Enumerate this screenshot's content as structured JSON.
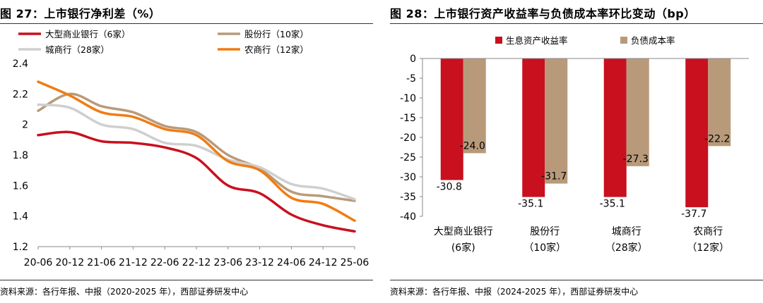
{
  "left": {
    "title": "图 27：上市银行净利差（%）",
    "source": "资料来源：各行年报、中报（2020-2025 年），西部证券研发中心",
    "chart_data": {
      "type": "line",
      "title": "上市银行净利差（%）",
      "x": [
        "20-06",
        "20-12",
        "21-06",
        "21-12",
        "22-06",
        "22-12",
        "23-06",
        "23-12",
        "24-06",
        "24-12",
        "25-06"
      ],
      "ylim": [
        1.2,
        2.4
      ],
      "yticks": [
        1.2,
        1.4,
        1.6,
        1.8,
        2,
        2.2,
        2.4
      ],
      "series": [
        {
          "name": "大型商业银行（6家）",
          "color": "#c8101e",
          "values": [
            1.93,
            1.95,
            1.89,
            1.88,
            1.85,
            1.78,
            1.6,
            1.55,
            1.41,
            1.34,
            1.3
          ]
        },
        {
          "name": "股份行（10家）",
          "color": "#b89a7a",
          "values": [
            2.09,
            2.2,
            2.12,
            2.08,
            1.99,
            1.95,
            1.8,
            1.71,
            1.56,
            1.53,
            1.5
          ]
        },
        {
          "name": "城商行（28家）",
          "color": "#cfcfcf",
          "values": [
            2.13,
            2.11,
            2.0,
            1.97,
            1.88,
            1.86,
            1.77,
            1.72,
            1.61,
            1.58,
            1.51
          ]
        },
        {
          "name": "农商行（12家）",
          "color": "#f07c13",
          "values": [
            2.28,
            2.19,
            2.08,
            2.05,
            1.97,
            1.93,
            1.76,
            1.7,
            1.52,
            1.48,
            1.37
          ]
        }
      ]
    }
  },
  "right": {
    "title": "图 28：上市银行资产收益率与负债成本率环比变动（bp）",
    "source": "资料来源：各行年报、中报（2024-2025 年），西部证券研发中心",
    "chart_data": {
      "type": "bar",
      "title": "上市银行资产收益率与负债成本率环比变动（bp）",
      "categories": [
        {
          "line1": "大型商业银行",
          "line2": "(6家)"
        },
        {
          "line1": "股份行",
          "line2": "（10家）"
        },
        {
          "line1": "城商行",
          "line2": "（28家）"
        },
        {
          "line1": "农商行",
          "line2": "（12家）"
        }
      ],
      "ylim": [
        -40,
        0
      ],
      "yticks": [
        0,
        -5,
        -10,
        -15,
        -20,
        -25,
        -30,
        -35,
        -40
      ],
      "series": [
        {
          "name": "生息资产收益率",
          "color": "#c8101e",
          "values": [
            -30.8,
            -35.1,
            -35.1,
            -37.7
          ]
        },
        {
          "name": "负债成本率",
          "color": "#b89a7a",
          "values": [
            -24.0,
            -31.7,
            -27.3,
            -22.2
          ]
        }
      ]
    }
  }
}
